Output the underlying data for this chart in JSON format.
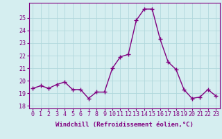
{
  "x": [
    0,
    1,
    2,
    3,
    4,
    5,
    6,
    7,
    8,
    9,
    10,
    11,
    12,
    13,
    14,
    15,
    16,
    17,
    18,
    19,
    20,
    21,
    22,
    23
  ],
  "y": [
    19.4,
    19.6,
    19.4,
    19.7,
    19.9,
    19.3,
    19.3,
    18.6,
    19.1,
    19.1,
    21.0,
    21.9,
    22.1,
    24.8,
    25.7,
    25.7,
    23.3,
    21.5,
    20.9,
    19.3,
    18.6,
    18.7,
    19.3,
    18.8
  ],
  "line_color": "#800080",
  "marker": "+",
  "marker_size": 4,
  "linewidth": 1.0,
  "bg_color": "#d5eef0",
  "grid_color": "#b0d8dc",
  "ylabel_ticks": [
    18,
    19,
    20,
    21,
    22,
    23,
    24,
    25
  ],
  "ylim": [
    17.8,
    26.2
  ],
  "xlim": [
    -0.5,
    23.5
  ],
  "xlabel": "Windchill (Refroidissement éolien,°C)",
  "xlabel_fontsize": 6.5,
  "tick_fontsize": 6.0,
  "spine_color": "#800080"
}
